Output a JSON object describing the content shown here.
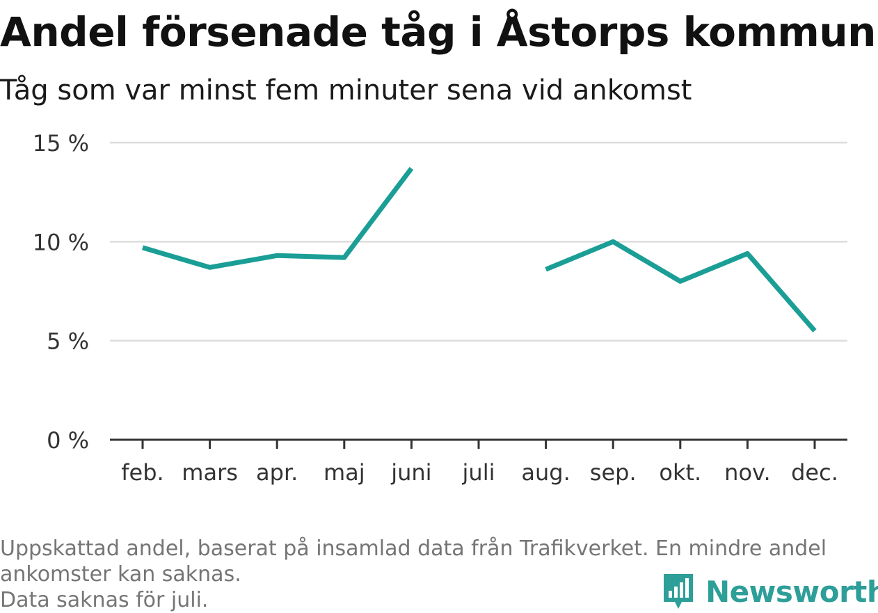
{
  "title": "Andel försenade tåg i Åstorps kommun",
  "subtitle": "Tåg som var minst fem minuter sena vid ankomst",
  "footnote": [
    "Uppskattad andel, baserat på insamlad data från Trafikverket. En mindre andel",
    "ankomster kan saknas.",
    "Data saknas för juli."
  ],
  "logo": {
    "text": "Newsworthy",
    "icon": "bar-chart-speech-bubble-icon"
  },
  "colors": {
    "line": "#1a9e96",
    "grid": "#dddddd",
    "axis": "#333333",
    "logo": "#2e9e98"
  },
  "chart_data": {
    "type": "line",
    "categories": [
      "feb.",
      "mars",
      "apr.",
      "maj",
      "juni",
      "juli",
      "aug.",
      "sep.",
      "okt.",
      "nov.",
      "dec."
    ],
    "series": [
      {
        "values": [
          9.7,
          8.7,
          9.3,
          9.2,
          13.7,
          null,
          8.6,
          10.0,
          8.0,
          9.4,
          5.5
        ]
      }
    ],
    "yticks": [
      0,
      5,
      10,
      15
    ],
    "ytick_labels": [
      "0 %",
      "5 %",
      "10 %",
      "15 %"
    ],
    "ylim": [
      0,
      15
    ],
    "grid": true,
    "xlabel": "",
    "ylabel": ""
  }
}
